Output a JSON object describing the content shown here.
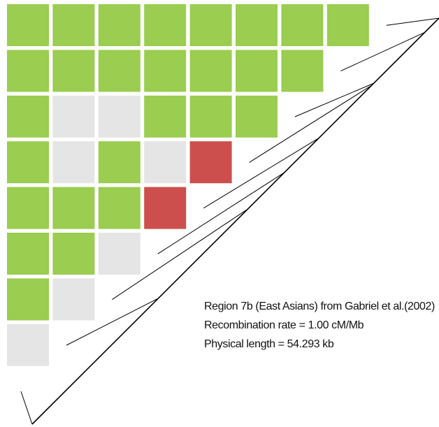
{
  "colors": {
    "strong_ld": "#9acd50",
    "weak_ld": "#e5e5e5",
    "recombination": "#cd4f4d",
    "line": "#000000"
  },
  "ld_matrix": {
    "legend": {
      "G": "green block",
      "X": "grey block",
      "R": "red block"
    },
    "rows": [
      "GGGGGGGG",
      "GGGGGGG",
      "GXXGGG",
      "GXGXR",
      "GGGR",
      "GGX",
      "GX",
      "X"
    ]
  },
  "caption": {
    "line1": "Region 7b (East Asians) from Gabriel et al.(2002)",
    "line2": "Recombination rate = 1.00 cM/Mb",
    "line3": "Physical length = 54.293 kb"
  }
}
